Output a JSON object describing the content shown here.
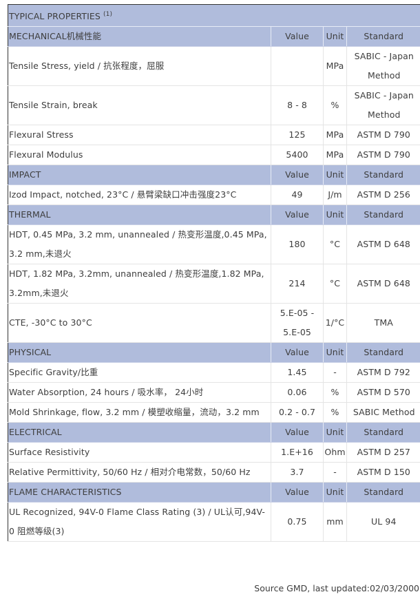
{
  "title": "TYPICAL PROPERTIES",
  "title_note": "(1)",
  "columns": {
    "value": "Value",
    "unit": "Unit",
    "standard": "Standard"
  },
  "sections": [
    {
      "name": "MECHANICAL机械性能",
      "rows": [
        {
          "property": "Tensile Stress, yield / 抗张程度，屈服",
          "value": "",
          "unit": "MPa",
          "standard": "SABIC - Japan Method"
        },
        {
          "property": "Tensile Strain, break",
          "value": "8 - 8",
          "unit": "%",
          "standard": "SABIC - Japan Method"
        },
        {
          "property": "Flexural Stress",
          "value": "125",
          "unit": "MPa",
          "standard": "ASTM D 790"
        },
        {
          "property": "Flexural Modulus",
          "value": "5400",
          "unit": "MPa",
          "standard": "ASTM D 790"
        }
      ]
    },
    {
      "name": "IMPACT",
      "rows": [
        {
          "property": "Izod Impact, notched, 23°C / 悬臂梁缺口冲击强度23°C",
          "value": "49",
          "unit": "J/m",
          "standard": "ASTM D 256"
        }
      ]
    },
    {
      "name": "THERMAL",
      "rows": [
        {
          "property": "HDT, 0.45 MPa, 3.2 mm, unannealed / 热变形温度,0.45 MPa, 3.2 mm,未退火",
          "value": "180",
          "unit": "°C",
          "standard": "ASTM D 648"
        },
        {
          "property": "HDT, 1.82 MPa, 3.2mm, unannealed / 热变形温度,1.82 MPa, 3.2mm,未退火",
          "value": "214",
          "unit": "°C",
          "standard": "ASTM D 648"
        },
        {
          "property": "CTE, -30°C to 30°C",
          "value": "5.E-05 - 5.E-05",
          "unit": "1/°C",
          "standard": "TMA"
        }
      ]
    },
    {
      "name": "PHYSICAL",
      "rows": [
        {
          "property": "Specific Gravity/比重",
          "value": "1.45",
          "unit": "-",
          "standard": "ASTM D 792"
        },
        {
          "property": "Water Absorption, 24 hours / 吸水率， 24小时",
          "value": "0.06",
          "unit": "%",
          "standard": "ASTM D 570"
        },
        {
          "property": "Mold Shrinkage, flow, 3.2 mm / 模塑收缩量，流动，3.2 mm",
          "value": "0.2 - 0.7",
          "unit": "%",
          "standard": "SABIC Method"
        }
      ]
    },
    {
      "name": "ELECTRICAL",
      "rows": [
        {
          "property": "Surface Resistivity",
          "value": "1.E+16",
          "unit": "Ohm",
          "standard": "ASTM D 257"
        },
        {
          "property": "Relative Permittivity, 50/60 Hz / 相对介电常数，50/60 Hz",
          "value": "3.7",
          "unit": "-",
          "standard": "ASTM D 150"
        }
      ]
    },
    {
      "name": "FLAME CHARACTERISTICS",
      "rows": [
        {
          "property": "UL Recognized, 94V-0 Flame Class Rating (3) / UL认可,94V-0 阻燃等级(3)",
          "value": "0.75",
          "unit": "mm",
          "standard": "UL 94"
        }
      ]
    }
  ],
  "source": "Source GMD, last updated:02/03/2000",
  "colors": {
    "header_bg": "#b0bcdc",
    "text": "#3d3d3d"
  }
}
